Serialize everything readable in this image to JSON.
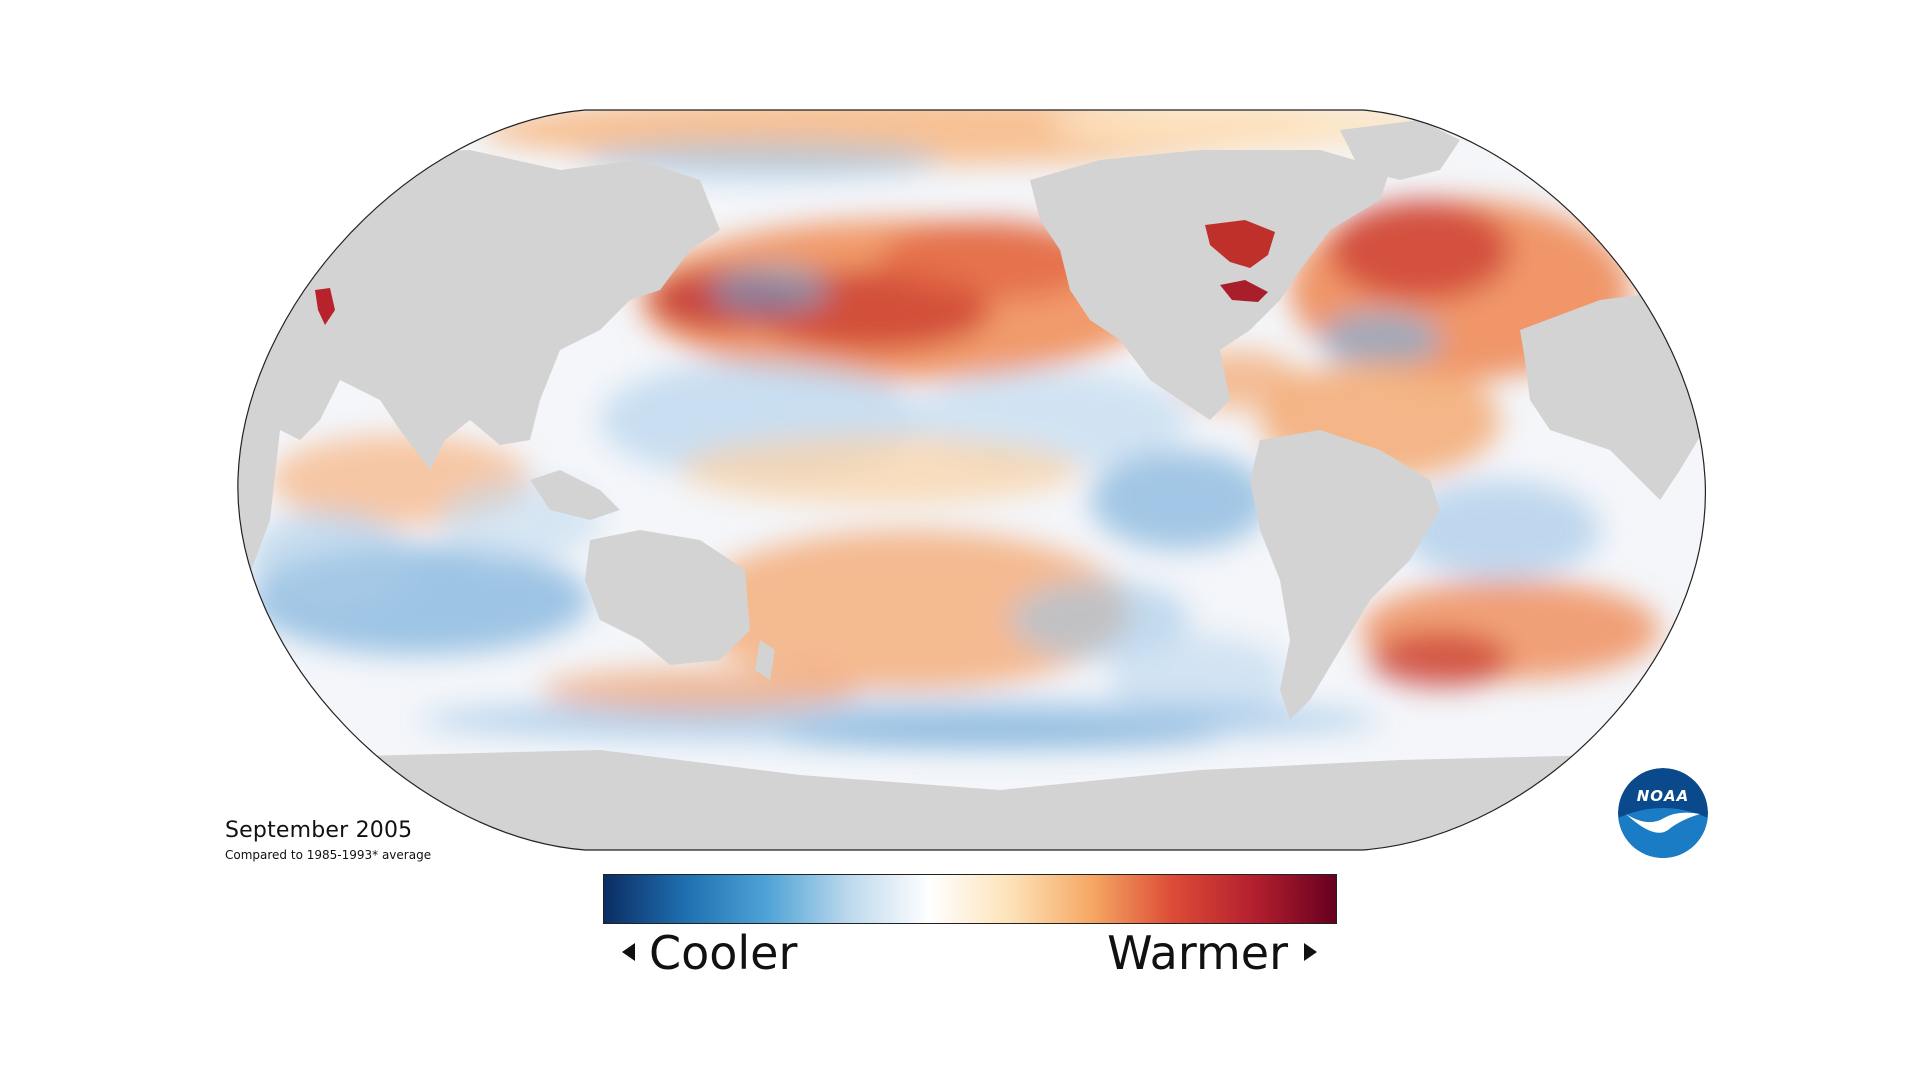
{
  "map": {
    "title": "September 2005",
    "subtitle": "Compared to 1985-1993* average",
    "colors": {
      "land": "#d3d3d3",
      "outline": "#222222",
      "ocean_base": "#f4f6fa"
    }
  },
  "legend": {
    "low_label": "Cooler",
    "high_label": "Warmer",
    "gradient": [
      "#0b2d64",
      "#1f6fb0",
      "#4ea3d6",
      "#bcd8ec",
      "#ffffff",
      "#fde2b8",
      "#f6a763",
      "#dc4b36",
      "#b31f2e",
      "#67001f"
    ]
  },
  "logo": {
    "text": "NOAA",
    "icon": "noaa-bird-logo"
  }
}
